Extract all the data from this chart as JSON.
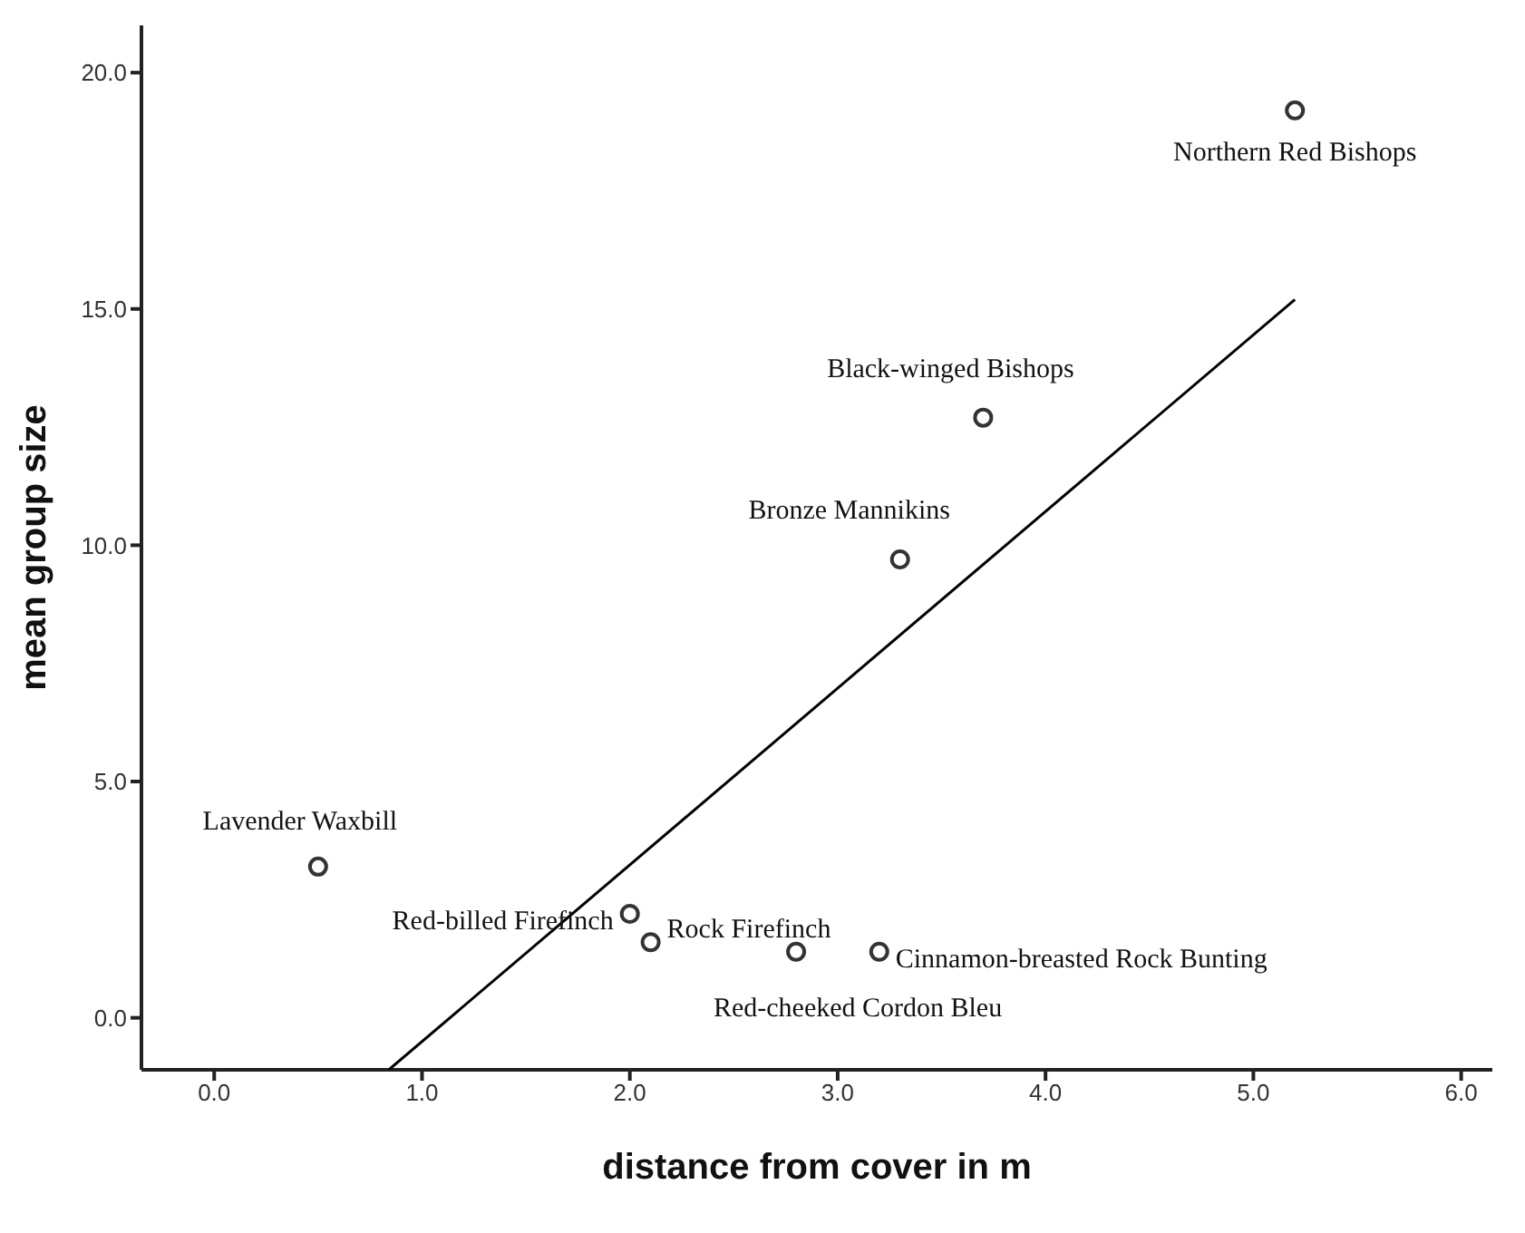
{
  "chart_data": {
    "type": "scatter",
    "xlabel": "distance from cover in m",
    "ylabel": "mean group size",
    "xlim": [
      -0.35,
      6.15
    ],
    "ylim": [
      -1.1,
      21
    ],
    "xticks": [
      {
        "value": 0,
        "label": "0.0"
      },
      {
        "value": 1,
        "label": "1.0"
      },
      {
        "value": 2,
        "label": "2.0"
      },
      {
        "value": 3,
        "label": "3.0"
      },
      {
        "value": 4,
        "label": "4.0"
      },
      {
        "value": 5,
        "label": "5.0"
      },
      {
        "value": 6,
        "label": "6.0"
      }
    ],
    "yticks": [
      {
        "value": 0,
        "label": "0.0"
      },
      {
        "value": 5,
        "label": "5.0"
      },
      {
        "value": 10,
        "label": "10.0"
      },
      {
        "value": 15,
        "label": "15.0"
      },
      {
        "value": 20,
        "label": "20.0"
      }
    ],
    "grid": false,
    "legend": false,
    "marker": "circle",
    "series": [
      {
        "color": "#333333",
        "x": [
          5.2,
          3.7,
          3.3,
          0.5,
          2.0,
          2.1,
          2.8,
          3.2
        ],
        "values": [
          19.2,
          12.7,
          9.7,
          3.2,
          2.2,
          1.6,
          1.4,
          1.4
        ]
      },
      {
        "type": "line",
        "color": "#000000",
        "marker": "none",
        "x": [
          0.84,
          5.2
        ],
        "values": [
          -1.1,
          15.2
        ]
      }
    ],
    "annotations": [
      {
        "text": "Northern Red Bishops",
        "x": 5.2,
        "y": 19.2
      },
      {
        "text": "Black-winged Bishops",
        "x": 3.7,
        "y": 12.7
      },
      {
        "text": "Bronze Mannikins",
        "x": 3.3,
        "y": 9.7
      },
      {
        "text": "Lavender Waxbill",
        "x": 0.5,
        "y": 3.2
      },
      {
        "text": "Red-billed Firefinch",
        "x": 2.0,
        "y": 2.2
      },
      {
        "text": "Rock Firefinch",
        "x": 2.1,
        "y": 1.6
      },
      {
        "text": "Red-cheeked Cordon Bleu",
        "x": 2.8,
        "y": 1.4
      },
      {
        "text": "Cinnamon-breasted Rock Bunting",
        "x": 3.2,
        "y": 1.4
      }
    ]
  }
}
